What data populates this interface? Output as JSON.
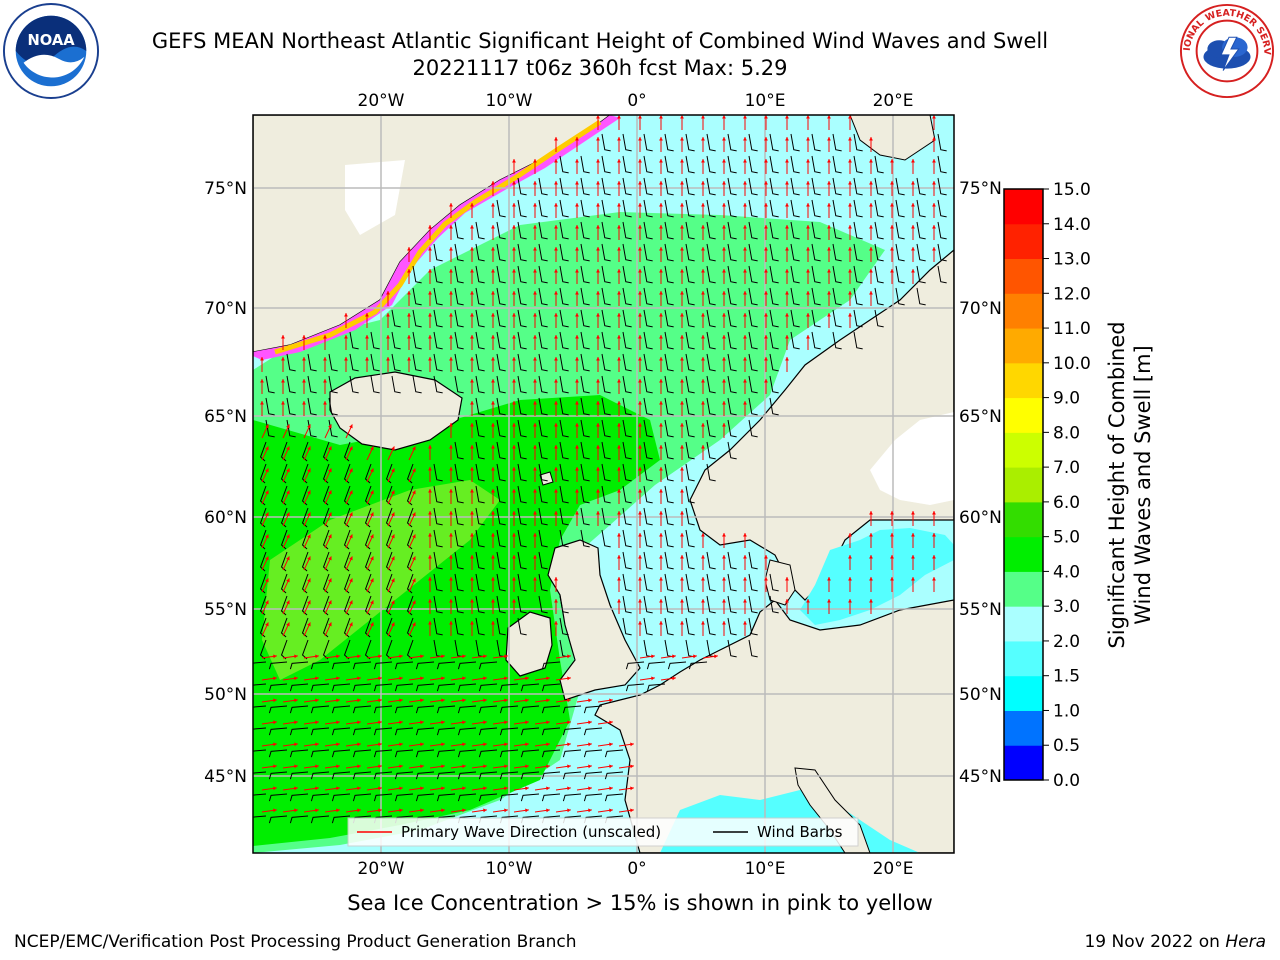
{
  "header": {
    "title_line1": "GEFS MEAN Northeast Atlantic Significant Height of Combined Wind Waves and Swell",
    "title_line2": "20221117 t06z 360h fcst   Max: 5.29"
  },
  "logos": {
    "left": {
      "name": "noaa-logo",
      "text": "NOAA"
    },
    "right": {
      "name": "nws-logo",
      "text": "NATIONAL WEATHER SERVICE"
    }
  },
  "map": {
    "lon_ticks_top": [
      "20°W",
      "10°W",
      "0°",
      "10°E",
      "20°E"
    ],
    "lon_ticks_bottom": [
      "20°W",
      "10°W",
      "0°",
      "10°E",
      "20°E"
    ],
    "lat_ticks_left": [
      "75°N",
      "70°N",
      "65°N",
      "60°N",
      "55°N",
      "50°N",
      "45°N"
    ],
    "lat_ticks_right": [
      "75°N",
      "70°N",
      "65°N",
      "60°N",
      "55°N",
      "50°N",
      "45°N"
    ],
    "colors": {
      "land": "#efedde",
      "ocean_low": "#aaffff",
      "ocean_mid": "#55ff88",
      "ocean_high": "#00ee00",
      "ice": "#ff55ff",
      "grid": "#bbbbbb",
      "wave_arrow": "#ff0000",
      "wind_barb": "#000000"
    }
  },
  "legend": {
    "wave_direction": "Primary Wave Direction (unscaled)",
    "wind_barbs": "Wind Barbs"
  },
  "colorbar": {
    "label_line1": "Significant Height of Combined",
    "label_line2": "Wind Waves and Swell [m]",
    "ticks": [
      "0.0",
      "0.5",
      "1.0",
      "1.5",
      "2.0",
      "3.0",
      "4.0",
      "5.0",
      "6.0",
      "7.0",
      "8.0",
      "9.0",
      "10.0",
      "11.0",
      "12.0",
      "13.0",
      "14.0",
      "15.0"
    ],
    "colors": [
      "#0000ff",
      "#0073ff",
      "#00ffff",
      "#55ffff",
      "#aaffff",
      "#55ff88",
      "#00ee00",
      "#33dd00",
      "#aaee00",
      "#ccff00",
      "#ffff00",
      "#ffd700",
      "#ffaa00",
      "#ff8000",
      "#ff5500",
      "#ff2200",
      "#ff0000"
    ]
  },
  "note": "Sea Ice Concentration > 15% is shown in pink to yellow",
  "footer": {
    "left": "NCEP/EMC/Verification Post Processing Product Generation Branch",
    "right_date": "19 Nov 2022 on ",
    "right_host": "Hera"
  }
}
